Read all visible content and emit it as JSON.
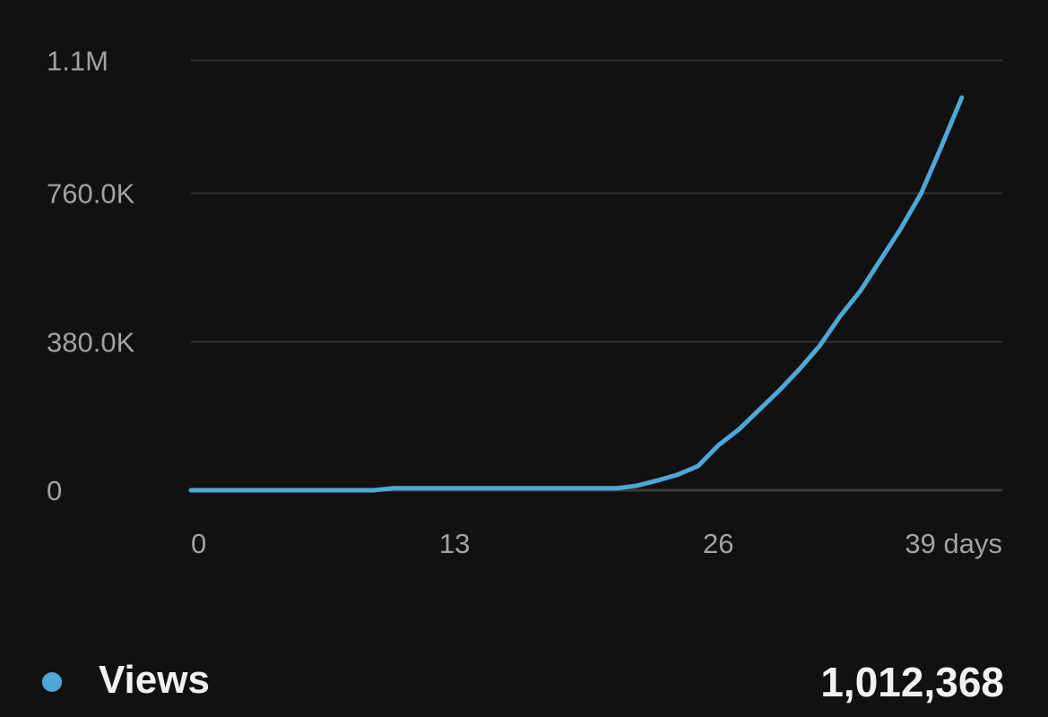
{
  "chart_data": {
    "type": "line",
    "y_ticks": [
      {
        "value": 0,
        "label": "0"
      },
      {
        "value": 380000,
        "label": "380.0K"
      },
      {
        "value": 760000,
        "label": "760.0K"
      },
      {
        "value": 1100000,
        "label": "1.1M"
      }
    ],
    "x_ticks": [
      {
        "value": 0,
        "label": "0"
      },
      {
        "value": 13,
        "label": "13"
      },
      {
        "value": 26,
        "label": "26"
      },
      {
        "value": 39,
        "label": "39 days"
      }
    ],
    "xlim": [
      0,
      40
    ],
    "ylim": [
      0,
      1140000
    ],
    "grid": true,
    "series": [
      {
        "legend_label": "Views",
        "total": "1,012,368",
        "color": "#4ea8d6",
        "points": [
          [
            0,
            0
          ],
          [
            9,
            0
          ],
          [
            10,
            5000
          ],
          [
            21,
            5000
          ],
          [
            22,
            12000
          ],
          [
            23,
            25000
          ],
          [
            24,
            40000
          ],
          [
            25,
            62000
          ],
          [
            26,
            115000
          ],
          [
            27,
            155000
          ],
          [
            28,
            205000
          ],
          [
            29,
            255000
          ],
          [
            30,
            310000
          ],
          [
            31,
            370000
          ],
          [
            32,
            445000
          ],
          [
            33,
            510000
          ],
          [
            34,
            590000
          ],
          [
            35,
            670000
          ],
          [
            36,
            760000
          ],
          [
            37,
            880000
          ],
          [
            38,
            1005000
          ]
        ]
      }
    ]
  }
}
